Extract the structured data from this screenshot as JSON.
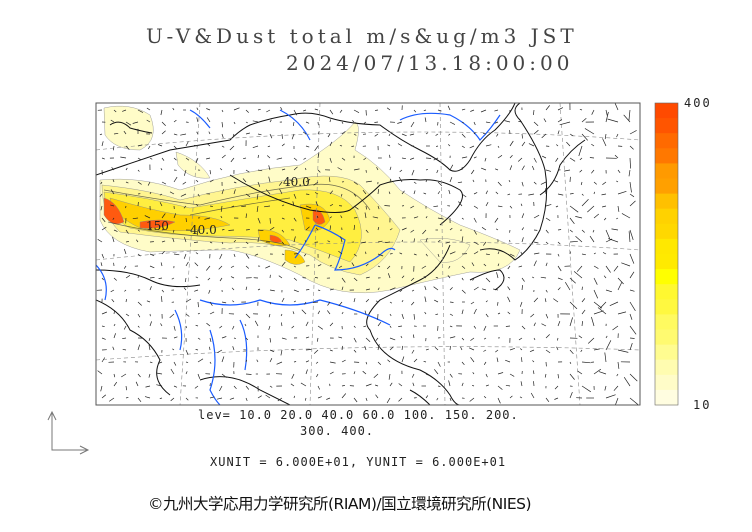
{
  "title": {
    "line1": "U-V&Dust total m/s&ug/m3 JST",
    "line2": "2024/07/13.18:00:00"
  },
  "map": {
    "contour_labels": [
      "40.0",
      "150",
      "40.0"
    ],
    "fill_color_low": "#ffffc0",
    "fill_color_mid": "#ffe820",
    "fill_color_high": "#ff5a10",
    "coast_color": "#000000",
    "river_color": "#1a5cff"
  },
  "colorbar": {
    "max_label": "400",
    "min_label": "10",
    "colors": [
      "#ff4a00",
      "#ff5500",
      "#ff6a00",
      "#ff7800",
      "#ff9a00",
      "#ffa000",
      "#ffc000",
      "#ffd200",
      "#ffd800",
      "#ffe800",
      "#ffea00",
      "#ffff00",
      "#fff830",
      "#fff840",
      "#fffa60",
      "#fffa70",
      "#fffc90",
      "#fffcb0",
      "#fffcc8",
      "#fffde0"
    ]
  },
  "legend": {
    "levels_line1": "lev= 10.0 20.0 40.0 60.0 100. 150. 200.",
    "levels_line2": "300. 400.",
    "units": "XUNIT = 6.000E+01, YUNIT = 6.000E+01"
  },
  "copyright": "©九州大学応用力学研究所(RIAM)/国立環境研究所(NIES)"
}
